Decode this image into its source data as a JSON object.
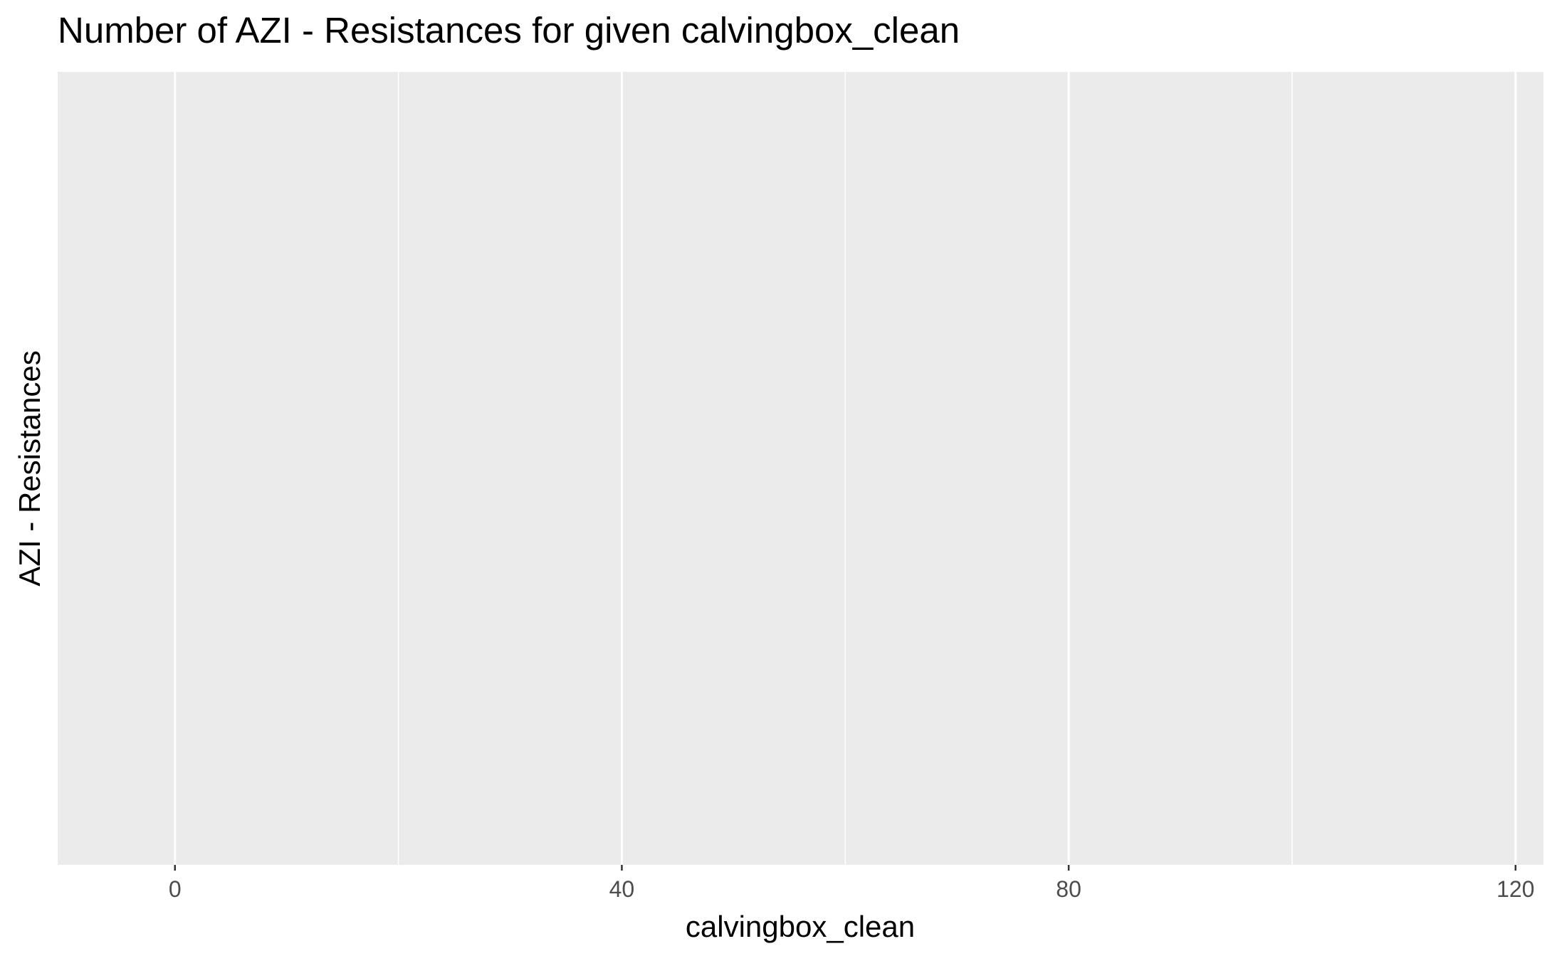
{
  "chart_data": {
    "type": "bar",
    "title": "Number of AZI - Resistances for given calvingbox_clean",
    "xlabel": "calvingbox_clean",
    "ylabel": "AZI - Resistances",
    "x_ticks": [
      0,
      40,
      80,
      120
    ],
    "x_minor_ticks": [
      20,
      60,
      100
    ],
    "xlim": [
      -10.5,
      122.5
    ],
    "categories": [],
    "values": [],
    "grid": true,
    "legend": "none",
    "colors": {
      "panel_background": "#EBEBEB",
      "grid_line": "#FFFFFF",
      "tick_mark": "#333333",
      "tick_label": "#4D4D4D",
      "text": "#000000"
    }
  }
}
